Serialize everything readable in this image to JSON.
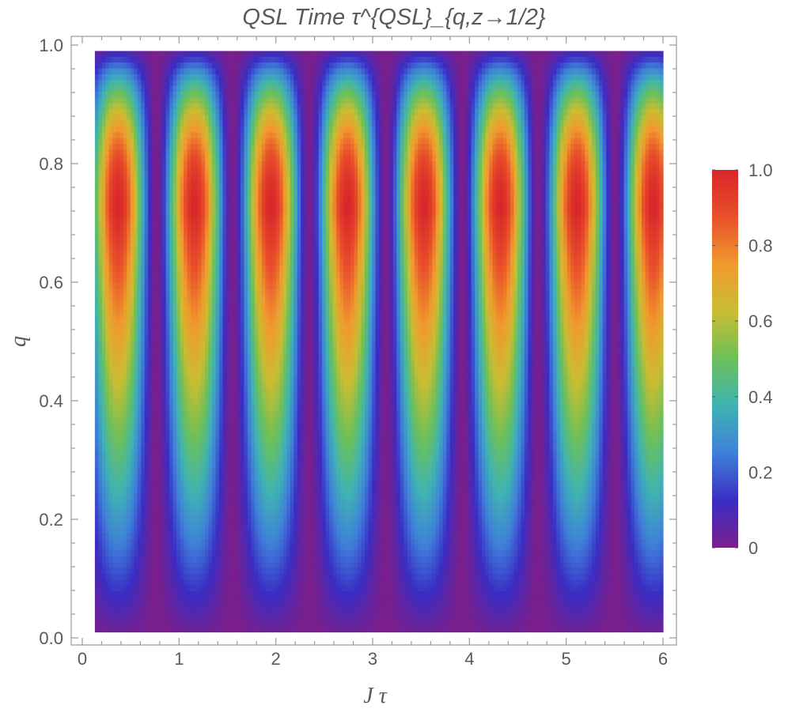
{
  "chart_data": {
    "type": "heatmap",
    "title": "QSL Time  τ^{QSL}_{q,z→1/2}",
    "xlabel": "J τ",
    "ylabel": "q",
    "xlim": [
      0,
      6.1
    ],
    "ylim": [
      0,
      1.0
    ],
    "data_extent": {
      "x": [
        0.13,
        6.0
      ],
      "y": [
        0.01,
        0.99
      ]
    },
    "x_ticks": [
      "0",
      "1",
      "2",
      "3",
      "4",
      "5",
      "6"
    ],
    "y_ticks": [
      "0.0",
      "0.2",
      "0.4",
      "0.6",
      "0.8",
      "1.0"
    ],
    "colorbar": {
      "ticks": [
        "0",
        "0.2",
        "0.4",
        "0.6",
        "0.8",
        "1.0"
      ],
      "range": [
        0,
        1.0
      ],
      "colors": [
        "#7a1f8c",
        "#3a2dc4",
        "#3f7fd9",
        "#3fb3b3",
        "#6cc05a",
        "#c9bd33",
        "#f09a2e",
        "#e8502a",
        "#d9262a"
      ]
    },
    "peaks": {
      "x_centers": [
        0.37,
        1.18,
        1.95,
        2.74,
        3.53,
        4.3,
        5.1,
        5.9
      ],
      "q_max": 0.72,
      "max_value": 1.0,
      "min_value": 0.0
    },
    "grid": false
  }
}
